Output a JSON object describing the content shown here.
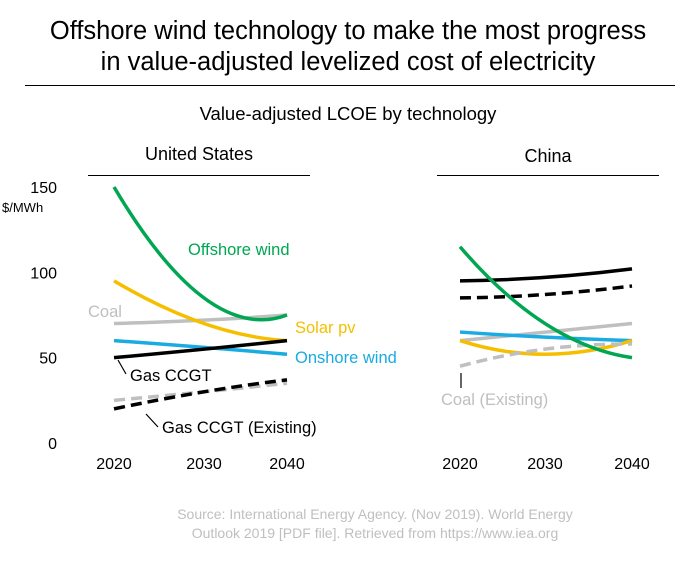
{
  "title_line1": "Offshore wind technology to make the most progress",
  "title_line2": "in value-adjusted levelized cost of electricity",
  "subtitle": "Value-adjusted LCOE by technology",
  "source_line1": "Source: International Energy Agency. (Nov 2019). World Energy",
  "source_line2": "Outlook 2019 [PDF file]. Retrieved from https://www.iea.org",
  "chart_data": {
    "type": "line",
    "ylabel": "$/MWh",
    "ylim": [
      0,
      150
    ],
    "yticks": [
      0,
      50,
      100,
      150
    ],
    "ytick_labels": [
      "0",
      "50",
      "100",
      "150"
    ],
    "x": [
      "2020",
      "2030",
      "2040"
    ],
    "colors": {
      "offshore_wind": "#00a651",
      "solar_pv": "#f5bf00",
      "onshore_wind": "#1aabe3",
      "coal": "#bfbfbf",
      "coal_existing": "#bfbfbf",
      "gas_ccgt": "#000000",
      "gas_ccgt_existing": "#000000"
    },
    "panels": [
      {
        "name": "United States",
        "series": [
          {
            "key": "coal",
            "name": "Coal",
            "values": [
              70,
              72,
              75
            ],
            "dashed": false
          },
          {
            "key": "offshore_wind",
            "name": "Offshore wind",
            "values": [
              150,
              85,
              75
            ],
            "dashed": false
          },
          {
            "key": "solar_pv",
            "name": "Solar pv",
            "values": [
              95,
              70,
              60
            ],
            "dashed": false
          },
          {
            "key": "onshore_wind",
            "name": "Onshore wind",
            "values": [
              60,
              56,
              52
            ],
            "dashed": false
          },
          {
            "key": "gas_ccgt",
            "name": "Gas CCGT",
            "values": [
              50,
              55,
              60
            ],
            "dashed": false
          },
          {
            "key": "coal_existing",
            "name": "Coal (Existing)",
            "values": [
              25,
              30,
              35
            ],
            "dashed": true
          },
          {
            "key": "gas_ccgt_existing",
            "name": "Gas CCGT (Existing)",
            "values": [
              20,
              30,
              37
            ],
            "dashed": true
          }
        ],
        "labels": [
          {
            "key": "offshore_wind",
            "text": "Offshore wind"
          },
          {
            "key": "coal",
            "text": "Coal"
          },
          {
            "key": "solar_pv",
            "text": "Solar pv"
          },
          {
            "key": "onshore_wind",
            "text": "Onshore wind"
          },
          {
            "key": "gas_ccgt",
            "text": "Gas CCGT"
          },
          {
            "key": "gas_ccgt_existing",
            "text": "Gas CCGT (Existing)"
          }
        ]
      },
      {
        "name": "China",
        "series": [
          {
            "key": "gas_ccgt",
            "name": "Gas CCGT",
            "values": [
              95,
              97,
              102
            ],
            "dashed": false
          },
          {
            "key": "gas_ccgt_existing",
            "name": "Gas CCGT (Existing)",
            "values": [
              85,
              87,
              92
            ],
            "dashed": true
          },
          {
            "key": "coal",
            "name": "Coal",
            "values": [
              60,
              65,
              70
            ],
            "dashed": false
          },
          {
            "key": "onshore_wind",
            "name": "Onshore wind",
            "values": [
              65,
              62,
              60
            ],
            "dashed": false
          },
          {
            "key": "solar_pv",
            "name": "Solar pv",
            "values": [
              60,
              52,
              60
            ],
            "dashed": false
          },
          {
            "key": "coal_existing",
            "name": "Coal (Existing)",
            "values": [
              45,
              55,
              58
            ],
            "dashed": true
          },
          {
            "key": "offshore_wind",
            "name": "Offshore wind",
            "values": [
              115,
              70,
              50
            ],
            "dashed": false
          }
        ],
        "labels": [
          {
            "key": "coal_existing",
            "text": "Coal (Existing)"
          }
        ]
      }
    ]
  }
}
